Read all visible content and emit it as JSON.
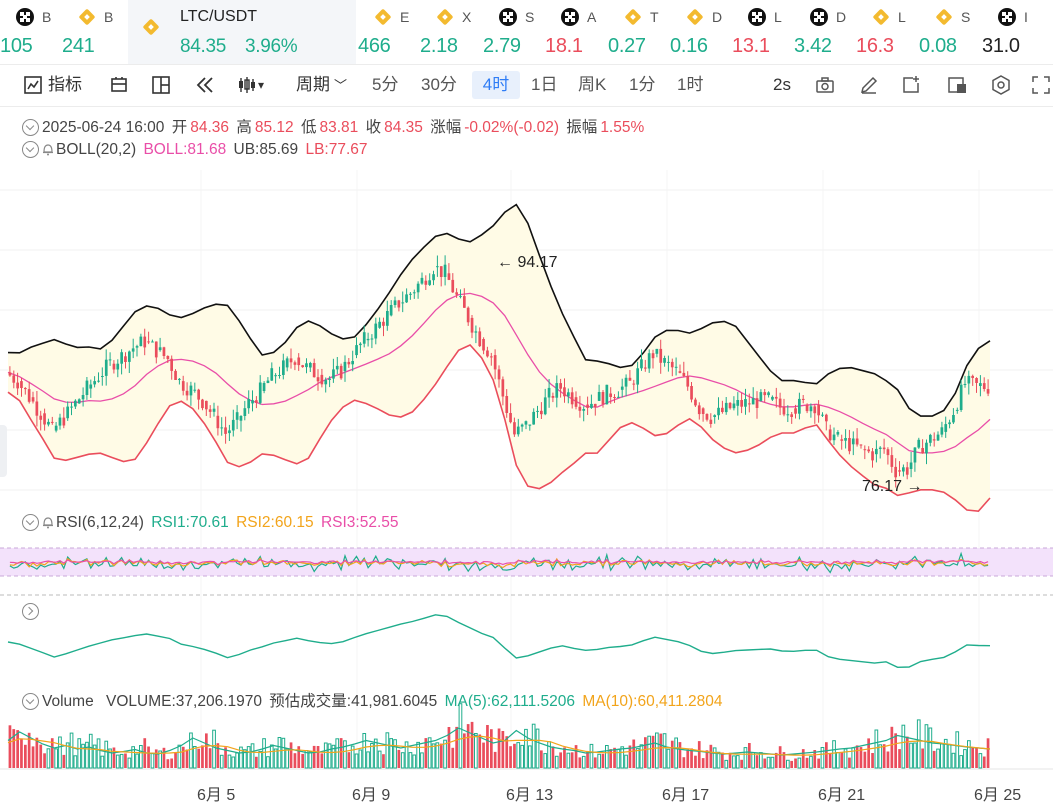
{
  "ticker": [
    {
      "icon": "okx-icon",
      "name": "B",
      "price": "105",
      "dir": "up"
    },
    {
      "icon": "binance-icon",
      "name": "B",
      "price": "241",
      "dir": "up"
    },
    {
      "icon": "binance-icon",
      "name": "LTC/USDT",
      "price": "84.35",
      "change": "3.96%",
      "dir": "up",
      "active": true
    },
    {
      "icon": "binance-icon",
      "name": "E",
      "price": "466",
      "dir": "up"
    },
    {
      "icon": "binance-icon",
      "name": "X",
      "price": "2.18",
      "dir": "up"
    },
    {
      "icon": "okx-icon",
      "name": "S",
      "price": "2.79",
      "dir": "up"
    },
    {
      "icon": "okx-icon",
      "name": "A",
      "price": "18.1",
      "dir": "dn"
    },
    {
      "icon": "binance-icon",
      "name": "T",
      "price": "0.27",
      "dir": "up"
    },
    {
      "icon": "binance-icon",
      "name": "D",
      "price": "0.16",
      "dir": "up"
    },
    {
      "icon": "okx-icon",
      "name": "L",
      "price": "13.1",
      "dir": "dn"
    },
    {
      "icon": "okx-icon",
      "name": "D",
      "price": "3.42",
      "dir": "up"
    },
    {
      "icon": "binance-icon",
      "name": "L",
      "price": "16.3",
      "dir": "dn"
    },
    {
      "icon": "binance-icon",
      "name": "S",
      "price": "0.08",
      "dir": "up"
    },
    {
      "icon": "okx-icon",
      "name": "I",
      "price": "31.0",
      "dir": "none"
    }
  ],
  "toolbar": {
    "indicators": "指标",
    "period": "周期",
    "intervals": [
      "5分",
      "30分",
      "4时",
      "1日",
      "周K",
      "1分",
      "1时"
    ],
    "selected_interval": "4时",
    "refresh": "2s"
  },
  "ohlc": {
    "datetime": "2025-06-24 16:00",
    "open_label": "开",
    "open": "84.36",
    "high_label": "高",
    "high": "85.12",
    "low_label": "低",
    "low": "83.81",
    "close_label": "收",
    "close": "84.35",
    "change_label": "涨幅",
    "change": "-0.02%(-0.02)",
    "amp_label": "振幅",
    "amp": "1.55%"
  },
  "boll": {
    "label": "BOLL(20,2)",
    "mid": "BOLL:81.68",
    "ub": "UB:85.69",
    "lb": "LB:77.67"
  },
  "rsi": {
    "label": "RSI(6,12,24)",
    "rsi1": "RSI1:70.61",
    "rsi2": "RSI2:60.15",
    "rsi3": "RSI3:52.55"
  },
  "volume": {
    "label": "Volume",
    "vol": "VOLUME:37,206.1970",
    "est": "预估成交量:41,981.6045",
    "ma5": "MA(5):62,111.5206",
    "ma10": "MA(10):60,411.2804"
  },
  "markers": {
    "high": "94.17",
    "low": "76.17"
  },
  "colors": {
    "up": "#1fad8c",
    "down": "#ea4d5c",
    "boll_mid": "#e94ea8",
    "boll_band": "#111111",
    "boll_lower": "#ea4d5c",
    "band_fill": "#fffbe6",
    "rsi1": "#1fad8c",
    "rsi2": "#f2a41b",
    "rsi3": "#e94ea8",
    "rsi_zone": "#f3e2fb",
    "ma5": "#1fad8c",
    "ma10": "#f2a41b"
  },
  "chart_data": {
    "type": "candlestick",
    "interval": "4h",
    "x_ticks": [
      "6月 5",
      "6月 9",
      "6月 13",
      "6月 17",
      "6月 21",
      "6月 25"
    ],
    "price_anchors": {
      "max_marker": 94.17,
      "min_marker": 76.17
    },
    "close_path": [
      85.5,
      84.8,
      83.5,
      82.2,
      80.8,
      81.8,
      83.0,
      84.2,
      85.2,
      86.2,
      86.8,
      87.5,
      88.0,
      87.3,
      86.6,
      84.8,
      84.1,
      83.2,
      82.0,
      80.6,
      81.6,
      83.0,
      84.0,
      85.2,
      85.9,
      86.7,
      85.9,
      85.3,
      85.0,
      85.6,
      86.9,
      88.1,
      89.1,
      90.1,
      91.1,
      91.9,
      92.9,
      94.0,
      93.5,
      91.6,
      89.9,
      88.2,
      86.9,
      83.6,
      80.5,
      81.2,
      82.4,
      83.6,
      84.3,
      83.5,
      82.9,
      83.2,
      83.8,
      84.1,
      84.6,
      85.9,
      87.0,
      86.3,
      85.6,
      84.4,
      82.6,
      81.9,
      82.3,
      82.8,
      83.0,
      83.2,
      83.3,
      82.7,
      82.6,
      82.9,
      82.9,
      80.9,
      80.1,
      79.7,
      79.3,
      78.9,
      79.3,
      77.6,
      77.7,
      79.4,
      80.1,
      80.7,
      82.4,
      84.6,
      84.4,
      84.35
    ],
    "volume_profile": [
      0.55,
      0.72,
      0.6,
      0.48,
      0.4,
      0.45,
      0.38,
      0.42,
      0.35,
      0.3,
      0.33,
      0.37,
      0.3,
      0.28,
      0.35,
      0.45,
      0.6,
      0.5,
      0.4,
      0.35,
      0.3,
      0.32,
      0.38,
      0.45,
      0.4,
      0.35,
      0.3,
      0.32,
      0.38,
      0.42,
      0.48,
      0.55,
      0.5,
      0.45,
      0.4,
      0.45,
      0.5,
      0.55,
      0.65,
      0.8,
      0.7,
      0.6,
      0.5,
      0.55,
      0.75,
      0.6,
      0.5,
      0.42,
      0.38,
      0.35,
      0.3,
      0.32,
      0.35,
      0.38,
      0.4,
      0.45,
      0.5,
      0.42,
      0.38,
      0.35,
      0.33,
      0.3,
      0.28,
      0.3,
      0.32,
      0.3,
      0.28,
      0.26,
      0.28,
      0.3,
      0.32,
      0.35,
      0.38,
      0.4,
      0.45,
      0.5,
      0.55,
      0.65,
      0.6,
      0.55,
      0.5,
      0.48,
      0.45,
      0.42,
      0.4,
      0.38
    ]
  }
}
